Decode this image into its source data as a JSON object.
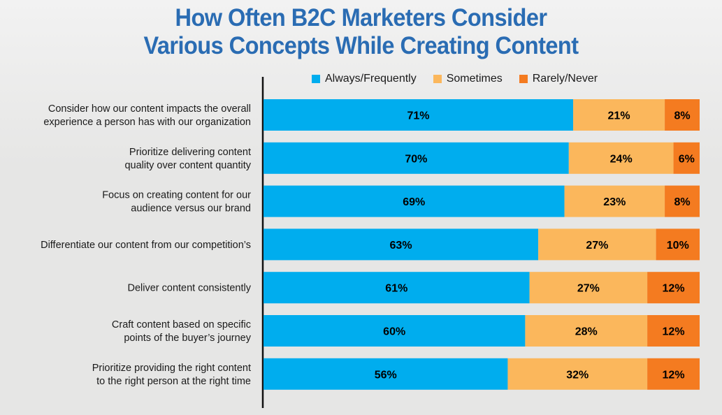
{
  "chart_data": {
    "type": "bar",
    "orientation": "horizontal",
    "stacked": true,
    "title": "How Often B2C Marketers Consider Various Concepts While Creating Content",
    "title_lines": [
      "How Often B2C Marketers Consider",
      "Various Concepts While Creating Content"
    ],
    "xlabel": "",
    "ylabel": "",
    "xlim": [
      0,
      100
    ],
    "grid": false,
    "legend_position": "top",
    "categories": [
      [
        "Consider how our content impacts the overall",
        "experience a person has with our organization"
      ],
      [
        "Prioritize delivering content",
        "quality over content quantity"
      ],
      [
        "Focus on creating content for our",
        "audience versus our brand"
      ],
      [
        "Differentiate our content from our competition’s"
      ],
      [
        "Deliver content consistently"
      ],
      [
        "Craft content based on specific",
        "points of the buyer’s journey"
      ],
      [
        "Prioritize providing the right content",
        "to the right person at the right time"
      ]
    ],
    "series": [
      {
        "name": "Always/Frequently",
        "color": "#00adee",
        "values": [
          71,
          70,
          69,
          63,
          61,
          60,
          56
        ]
      },
      {
        "name": "Sometimes",
        "color": "#fbb75c",
        "values": [
          21,
          24,
          23,
          27,
          27,
          28,
          32
        ]
      },
      {
        "name": "Rarely/Never",
        "color": "#f47b20",
        "values": [
          8,
          6,
          8,
          10,
          12,
          12,
          12
        ]
      }
    ],
    "value_suffix": "%"
  }
}
